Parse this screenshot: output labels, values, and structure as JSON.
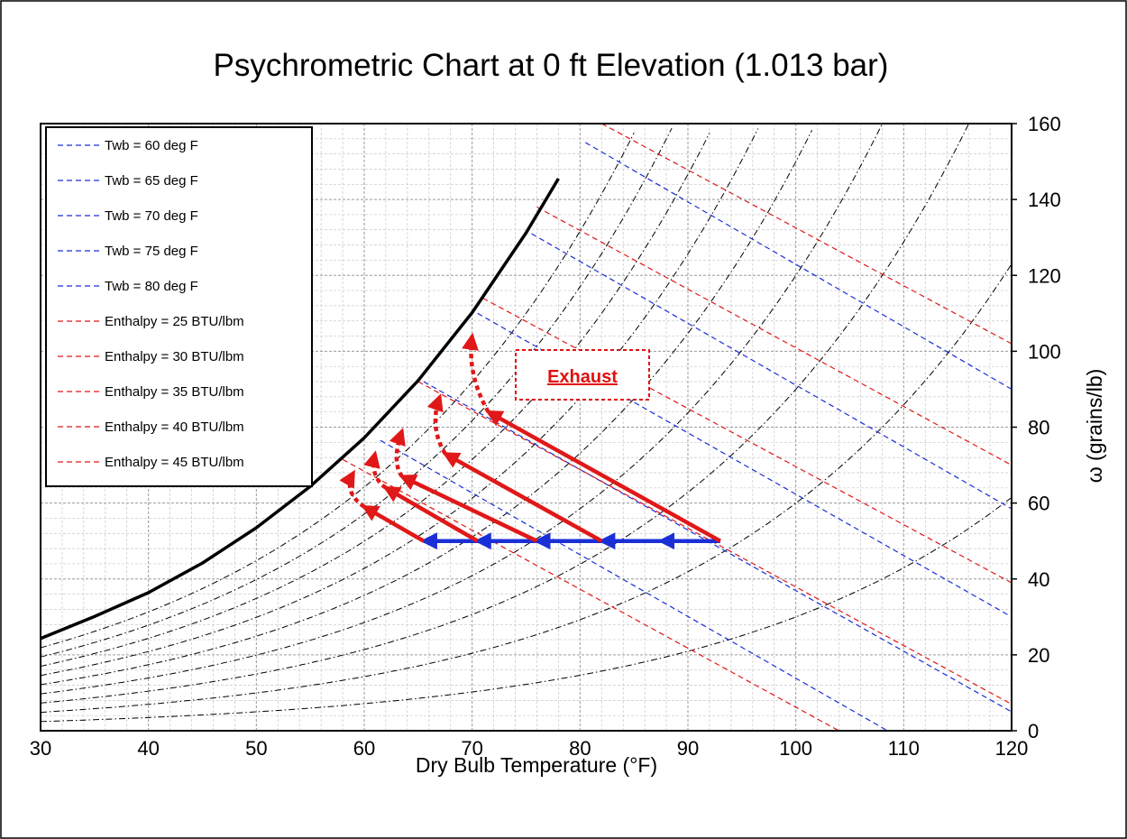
{
  "chart_data": {
    "type": "line",
    "title": "Psychrometric Chart at 0 ft Elevation (1.013 bar)",
    "xlabel": "Dry Bulb Temperature (°F)",
    "ylabel": "ω (grains/lb)",
    "xlim": [
      30,
      120
    ],
    "ylim": [
      0,
      160
    ],
    "x_ticks": [
      "30",
      "40",
      "50",
      "60",
      "70",
      "80",
      "90",
      "100",
      "110",
      "120"
    ],
    "y_ticks": [
      "0",
      "20",
      "40",
      "60",
      "80",
      "100",
      "120",
      "140",
      "160"
    ],
    "grid": true,
    "legend_position": "top-left",
    "colors": {
      "wetbulb": "#1a2fd6",
      "enthalpy": "#e01818",
      "saturation": "#000000",
      "rh": "#000000",
      "process_sensible": "#1a2fd6",
      "process_evap": "#e01818"
    },
    "series": [
      {
        "name": "Twb = 60 deg F",
        "kind": "wetbulb",
        "x": [
          61.5,
          108.5
        ],
        "y": [
          76.5,
          0
        ]
      },
      {
        "name": "Twb = 65 deg F",
        "kind": "wetbulb",
        "x": [
          65.5,
          120
        ],
        "y": [
          92,
          5
        ]
      },
      {
        "name": "Twb = 70 deg F",
        "kind": "wetbulb",
        "x": [
          70.5,
          120
        ],
        "y": [
          110,
          30
        ]
      },
      {
        "name": "Twb = 75 deg F",
        "kind": "wetbulb",
        "x": [
          75.5,
          120
        ],
        "y": [
          131,
          58.5
        ]
      },
      {
        "name": "Twb = 80 deg F",
        "kind": "wetbulb",
        "x": [
          80.5,
          120
        ],
        "y": [
          155,
          90
        ]
      },
      {
        "name": "Enthalpy = 25 BTU/lbm",
        "kind": "enthalpy",
        "x": [
          58,
          104
        ],
        "y": [
          71.5,
          0
        ]
      },
      {
        "name": "Enthalpy = 30 BTU/lbm",
        "kind": "enthalpy",
        "x": [
          65,
          120
        ],
        "y": [
          92,
          7
        ]
      },
      {
        "name": "Enthalpy = 35 BTU/lbm",
        "kind": "enthalpy",
        "x": [
          71,
          120
        ],
        "y": [
          114,
          39
        ]
      },
      {
        "name": "Enthalpy = 40 BTU/lbm",
        "kind": "enthalpy",
        "x": [
          76,
          120
        ],
        "y": [
          138,
          70
        ]
      },
      {
        "name": "Enthalpy = 45 BTU/lbm",
        "kind": "enthalpy",
        "x": [
          82,
          120
        ],
        "y": [
          160,
          102
        ]
      }
    ],
    "saturation_curve": {
      "x": [
        30,
        35,
        40,
        45,
        50,
        55,
        60,
        65,
        70,
        75,
        78
      ],
      "y": [
        24.3,
        30.1,
        36.4,
        44.2,
        53.5,
        64.4,
        77.2,
        92.3,
        110.2,
        131.2,
        145.5
      ]
    },
    "rh_fractions": [
      0.1,
      0.2,
      0.3,
      0.4,
      0.5,
      0.6,
      0.7,
      0.8,
      0.9
    ],
    "annotation": {
      "text": "Exhaust"
    },
    "process_arrows": {
      "sensible": [
        {
          "x": [
            93,
            87.5
          ],
          "y": [
            50,
            50
          ]
        },
        {
          "x": [
            87.5,
            82
          ],
          "y": [
            50,
            50
          ]
        },
        {
          "x": [
            82,
            76
          ],
          "y": [
            50,
            50
          ]
        },
        {
          "x": [
            76,
            70.5
          ],
          "y": [
            50,
            50
          ]
        },
        {
          "x": [
            70.5,
            65.5
          ],
          "y": [
            50,
            50
          ]
        }
      ],
      "evaporative": [
        {
          "x": [
            93,
            71.5
          ],
          "y": [
            50,
            84
          ]
        },
        {
          "x": [
            82,
            67.5
          ],
          "y": [
            50,
            73
          ]
        },
        {
          "x": [
            76,
            63.5
          ],
          "y": [
            50,
            67
          ]
        },
        {
          "x": [
            70.5,
            62
          ],
          "y": [
            50,
            64
          ]
        },
        {
          "x": [
            65.5,
            60
          ],
          "y": [
            50,
            59
          ]
        }
      ],
      "humidify_curves": [
        {
          "x": [
            71.5,
            69.5,
            70
          ],
          "y": [
            84,
            94,
            104
          ]
        },
        {
          "x": [
            67.5,
            66,
            67
          ],
          "y": [
            73,
            80,
            88
          ]
        },
        {
          "x": [
            63.5,
            62.5,
            63.5
          ],
          "y": [
            67,
            71,
            79
          ]
        },
        {
          "x": [
            62,
            60.5,
            61
          ],
          "y": [
            64,
            67,
            73
          ]
        },
        {
          "x": [
            60,
            58,
            59
          ],
          "y": [
            59,
            63,
            68
          ]
        }
      ]
    }
  }
}
